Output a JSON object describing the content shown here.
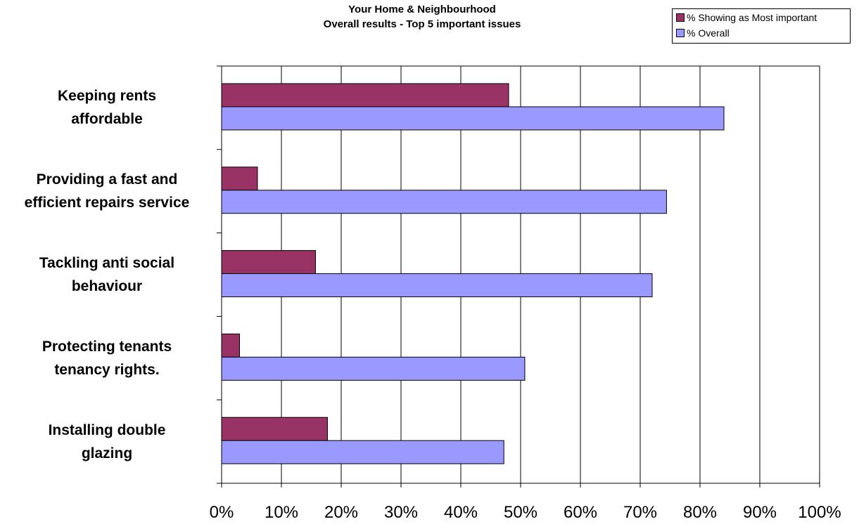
{
  "chart_data": {
    "type": "bar",
    "orientation": "horizontal",
    "title": "Your Home & Neighbourhood",
    "subtitle": "Overall results - Top 5 important issues",
    "categories": [
      [
        "Keeping rents",
        "affordable"
      ],
      [
        "Providing a fast and",
        "efficient repairs service"
      ],
      [
        "Tackling anti social",
        "behaviour"
      ],
      [
        "Protecting tenants",
        "tenancy rights."
      ],
      [
        "Installing double",
        "glazing"
      ]
    ],
    "series": [
      {
        "name": "% Showing as Most important",
        "color": "#993366",
        "values": [
          48,
          6,
          15.7,
          3,
          17.7
        ]
      },
      {
        "name": "% Overall",
        "color": "#9999ff",
        "values": [
          84,
          74.4,
          72,
          50.7,
          47.2
        ]
      }
    ],
    "xlim": [
      0,
      100
    ],
    "x_ticks": [
      "0%",
      "10%",
      "20%",
      "30%",
      "40%",
      "50%",
      "60%",
      "70%",
      "80%",
      "90%",
      "100%"
    ],
    "grid": true,
    "legend_position": "top-right"
  }
}
